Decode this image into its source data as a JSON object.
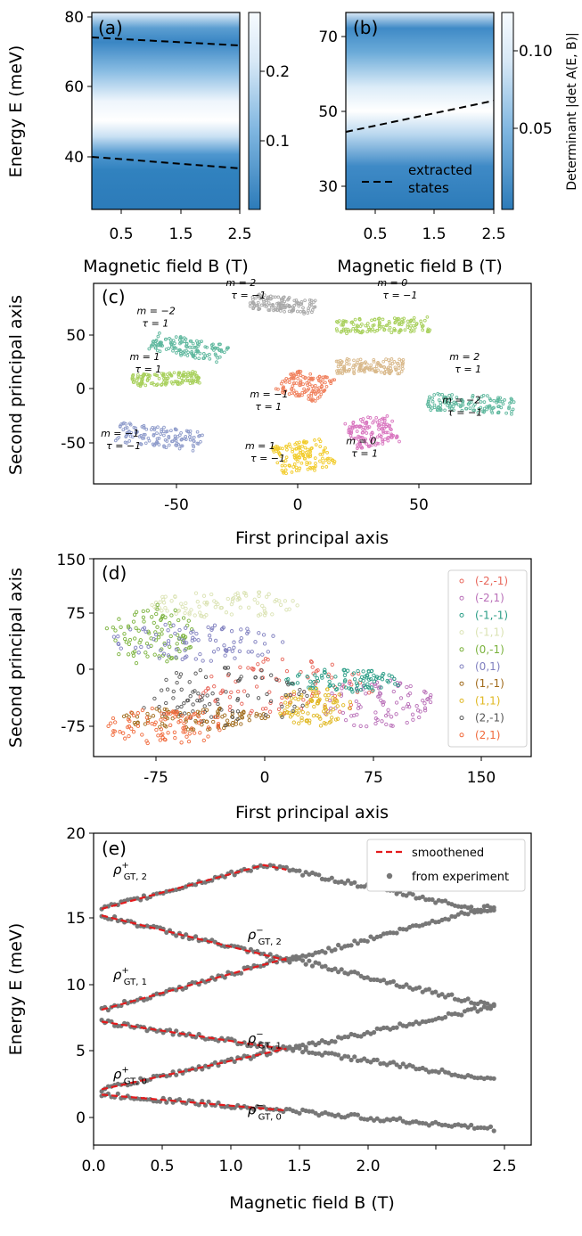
{
  "chart_data": [
    {
      "panel": "(a)",
      "type": "heatmap",
      "xlabel": "Magnetic field B (T)",
      "ylabel": "Energy E (meV)",
      "xticks": [
        "0.5",
        "1.5",
        "2.5"
      ],
      "yticks": [
        "40",
        "60",
        "80"
      ],
      "xlim": [
        0,
        2.5
      ],
      "ylim": [
        25,
        81
      ],
      "colorbar_ticks": [
        "0.1",
        "0.2"
      ],
      "colorbar_range": [
        0.02,
        0.3
      ],
      "extracted_states": [
        {
          "x": [
            0.0,
            2.5
          ],
          "y": [
            74,
            72
          ]
        },
        {
          "x": [
            0.0,
            2.5
          ],
          "y": [
            40,
            37
          ]
        }
      ]
    },
    {
      "panel": "(b)",
      "type": "heatmap",
      "xlabel": "Magnetic field B (T)",
      "ylabel": "",
      "xticks": [
        "0.5",
        "1.5",
        "2.5"
      ],
      "yticks": [
        "30",
        "50",
        "70"
      ],
      "xlim": [
        0,
        2.5
      ],
      "ylim": [
        24,
        77
      ],
      "colorbar_ticks": [
        "0.05",
        "0.10"
      ],
      "colorbar_range": [
        0.01,
        0.12
      ],
      "colorbar_label": "Determinant |det A(E, B)|",
      "legend": "extracted states",
      "extracted_states": [
        {
          "x": [
            0.0,
            2.5
          ],
          "y": [
            45,
            53
          ]
        }
      ]
    },
    {
      "panel": "(c)",
      "type": "scatter",
      "xlabel": "First principal axis",
      "ylabel": "Second principal axis",
      "xticks": [
        "-50",
        "0",
        "50"
      ],
      "yticks": [
        "-50",
        "0",
        "50"
      ],
      "xlim": [
        -85,
        97
      ],
      "ylim": [
        -80,
        82
      ],
      "clusters": [
        {
          "m": "m = 2",
          "tau": "τ = −1",
          "color": "#a9a9a9",
          "cx": -6,
          "cy": 65
        },
        {
          "m": "m = −2",
          "tau": "τ = 1",
          "color": "#5fb89e",
          "cx": -45,
          "cy": 30
        },
        {
          "m": "m = 0",
          "tau": "τ = −1",
          "color": "#a8d05c",
          "cx": 35,
          "cy": 48
        },
        {
          "m": "m = 1",
          "tau": "τ = 1",
          "color": "#a8d05c",
          "cx": -55,
          "cy": 5
        },
        {
          "m": "m = 2",
          "tau": "τ = 1",
          "color": "#d9b98b",
          "cx": 30,
          "cy": 15
        },
        {
          "m": "m = −1",
          "tau": "τ = 1",
          "color": "#f0825f",
          "cx": 3,
          "cy": 0
        },
        {
          "m": "m = −2",
          "tau": "τ = −1",
          "color": "#5fb89e",
          "cx": 72,
          "cy": -15
        },
        {
          "m": "m = −1",
          "tau": "τ = −1",
          "color": "#8f9ccb",
          "cx": -58,
          "cy": -42
        },
        {
          "m": "m = 1",
          "tau": "τ = −1",
          "color": "#f2cc2c",
          "cx": 2,
          "cy": -58
        },
        {
          "m": "m = 0",
          "tau": "τ = 1",
          "color": "#d977c0",
          "cx": 31,
          "cy": -38
        }
      ]
    },
    {
      "panel": "(d)",
      "type": "scatter",
      "xlabel": "First principal axis",
      "ylabel": "Second principal axis",
      "xticks": [
        "-75",
        "0",
        "75",
        "150"
      ],
      "yticks": [
        "-75",
        "0",
        "75",
        "150"
      ],
      "xlim": [
        -108,
        185
      ],
      "ylim": [
        -110,
        150
      ],
      "series": [
        {
          "name": "(-2,-1)",
          "color": "#e8665a"
        },
        {
          "name": "(-2,1)",
          "color": "#b96fb8"
        },
        {
          "name": "(-1,-1)",
          "color": "#2a9d86"
        },
        {
          "name": "(-1,1)",
          "color": "#dbe3b4"
        },
        {
          "name": "(0,-1)",
          "color": "#7ab23c"
        },
        {
          "name": "(0,1)",
          "color": "#7f7fbf"
        },
        {
          "name": "(1,-1)",
          "color": "#a06a1a"
        },
        {
          "name": "(1,1)",
          "color": "#e0b822"
        },
        {
          "name": "(2,-1)",
          "color": "#555555"
        },
        {
          "name": "(2,1)",
          "color": "#f06a3c"
        }
      ]
    },
    {
      "panel": "(e)",
      "type": "scatter",
      "xlabel": "Magnetic field B (T)",
      "ylabel": "Energy E (meV)",
      "xticks": [
        "0.0",
        "0.5",
        "1.0",
        "1.5",
        "2.0",
        "2.5"
      ],
      "yticks": [
        "0",
        "5",
        "10",
        "15",
        "20"
      ],
      "xlim": [
        0,
        2.7
      ],
      "ylim": [
        -3.5,
        20
      ],
      "legend": [
        "smoothened",
        "from experiment"
      ],
      "branch_labels": [
        {
          "base": "ρ",
          "sup": "+",
          "sub": "GT, 2",
          "x": 0.12,
          "y": 16.9
        },
        {
          "base": "ρ",
          "sup": "−",
          "sub": "GT, 2",
          "x": 0.95,
          "y": 12.0
        },
        {
          "base": "ρ",
          "sup": "+",
          "sub": "GT, 1",
          "x": 0.12,
          "y": 9.0
        },
        {
          "base": "ρ",
          "sup": "−",
          "sub": "GT, 1",
          "x": 0.95,
          "y": 4.2
        },
        {
          "base": "ρ",
          "sup": "+",
          "sub": "GT, 0",
          "x": 0.12,
          "y": 1.5
        },
        {
          "base": "ρ",
          "sup": "−",
          "sub": "GT, 0",
          "x": 0.95,
          "y": -1.2
        }
      ],
      "branches": [
        {
          "x": [
            0.05,
            1.05,
            2.48
          ],
          "y": [
            14.3,
            17.6,
            14.0
          ],
          "smooth_to": 1.2
        },
        {
          "x": [
            0.05,
            1.2,
            2.48
          ],
          "y": [
            13.8,
            10.4,
            14.6
          ],
          "smooth_to": 1.2
        },
        {
          "x": [
            0.05,
            1.2,
            2.48
          ],
          "y": [
            6.7,
            10.6,
            6.9
          ],
          "smooth_to": 1.2
        },
        {
          "x": [
            0.05,
            1.2,
            2.48
          ],
          "y": [
            5.8,
            3.7,
            7.0
          ],
          "smooth_to": 1.2
        },
        {
          "x": [
            0.05,
            1.2,
            2.48
          ],
          "y": [
            0.7,
            3.8,
            1.4
          ],
          "smooth_to": 1.2
        },
        {
          "x": [
            0.05,
            1.2,
            2.48
          ],
          "y": [
            0.3,
            -0.9,
            -2.3
          ],
          "smooth_to": 1.2
        }
      ]
    }
  ]
}
